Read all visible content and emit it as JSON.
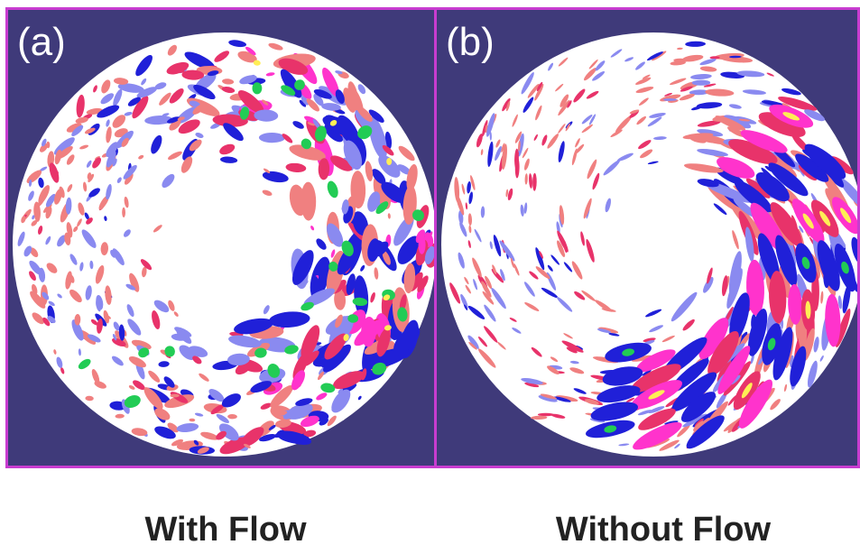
{
  "panels": [
    {
      "letter": "(a)",
      "caption": "With Flow",
      "pattern": "disordered-turbulent-eddies",
      "colors": {
        "background": "#3f3a7a",
        "border": "#c83cd0",
        "disk": "#ffffff"
      }
    },
    {
      "letter": "(b)",
      "caption": "Without Flow",
      "pattern": "radially-elongated-streamers",
      "colors": {
        "background": "#3f3a7a",
        "border": "#c83cd0",
        "disk": "#ffffff"
      }
    }
  ],
  "palette": {
    "positive_weak": "#f08080",
    "positive_mid": "#e8336a",
    "positive_strong": "#ff33cc",
    "positive_peak": "#ffee55",
    "negative_weak": "#8a8af0",
    "negative_mid": "#2020d8",
    "negative_peak": "#22cc55"
  }
}
